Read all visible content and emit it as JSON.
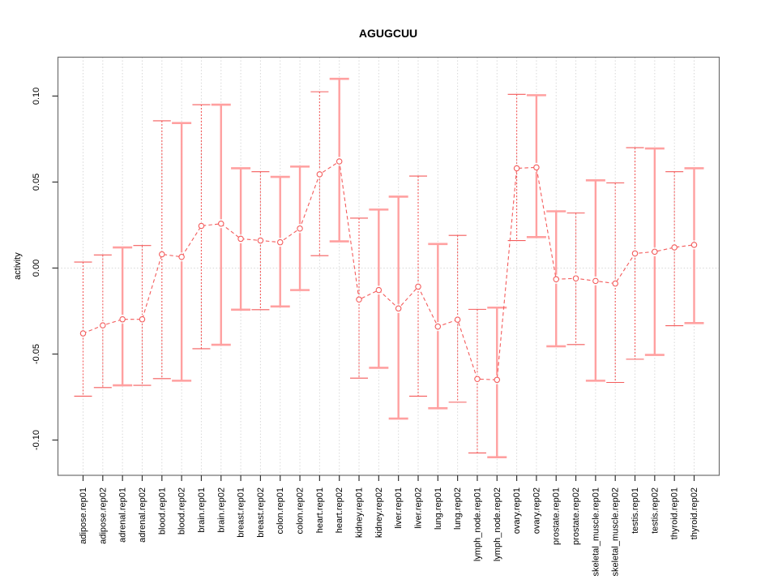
{
  "chart_data": {
    "type": "line",
    "title": "AGUGCUU",
    "ylabel": "activity",
    "xlabel": "",
    "legend": "none",
    "grid": {
      "vertical_per_category": true,
      "horizontal_zero_line": true,
      "style": "dotted"
    },
    "marker": "open-circle",
    "categories": [
      "adipose.rep01",
      "adipose.rep02",
      "adrenal.rep01",
      "adrenal.rep02",
      "blood.rep01",
      "blood.rep02",
      "brain.rep01",
      "brain.rep02",
      "breast.rep01",
      "breast.rep02",
      "colon.rep01",
      "colon.rep02",
      "heart.rep01",
      "heart.rep02",
      "kidney.rep01",
      "kidney.rep02",
      "liver.rep01",
      "liver.rep02",
      "lung.rep01",
      "lung.rep02",
      "lymph_node.rep01",
      "lymph_node.rep02",
      "ovary.rep01",
      "ovary.rep02",
      "prostate.rep01",
      "prostate.rep02",
      "skeletal_muscle.rep01",
      "skeletal_muscle.rep02",
      "testis.rep01",
      "testis.rep02",
      "thyroid.rep01",
      "thyroid.rep02"
    ],
    "series": [
      {
        "name": "activity",
        "values": [
          -0.038,
          -0.0333,
          -0.0298,
          -0.0298,
          0.008,
          0.0065,
          0.0245,
          0.0258,
          0.017,
          0.016,
          0.015,
          0.023,
          0.0545,
          0.062,
          -0.0183,
          -0.0128,
          -0.0235,
          -0.0108,
          -0.034,
          -0.03,
          -0.0645,
          -0.065,
          0.058,
          0.0585,
          -0.0065,
          -0.006,
          -0.0075,
          -0.009,
          0.0085,
          0.0095,
          0.012,
          0.0135
        ],
        "ci_low": [
          -0.0745,
          -0.0695,
          -0.0682,
          -0.0682,
          -0.0643,
          -0.0655,
          -0.0469,
          -0.0446,
          -0.0242,
          -0.0242,
          -0.0223,
          -0.0128,
          0.0072,
          0.0155,
          -0.064,
          -0.058,
          -0.0875,
          -0.0745,
          -0.0815,
          -0.078,
          -0.1075,
          -0.11,
          0.016,
          0.018,
          -0.0455,
          -0.0445,
          -0.0655,
          -0.0665,
          -0.053,
          -0.0505,
          -0.0335,
          -0.032
        ],
        "ci_high": [
          0.0035,
          0.0076,
          0.012,
          0.0131,
          0.0856,
          0.0843,
          0.095,
          0.095,
          0.058,
          0.056,
          0.053,
          0.059,
          0.1025,
          0.11,
          0.029,
          0.034,
          0.0415,
          0.0535,
          0.014,
          0.019,
          -0.024,
          -0.023,
          0.101,
          0.1005,
          0.033,
          0.032,
          0.051,
          0.0495,
          0.07,
          0.0695,
          0.056,
          0.058
        ],
        "bar_styles": [
          "dashed",
          "dashed",
          "solid",
          "dashed",
          "dashed",
          "solid",
          "dashed",
          "solid",
          "solid",
          "dashed",
          "solid",
          "solid",
          "dashed",
          "solid",
          "dashed",
          "solid",
          "solid",
          "dashed",
          "solid",
          "dashed",
          "dashed",
          "solid",
          "dashed",
          "solid",
          "solid",
          "dashed",
          "solid",
          "dashed",
          "dashed",
          "solid",
          "dashed",
          "solid"
        ]
      }
    ],
    "yticks": [
      -0.1,
      -0.05,
      0.0,
      0.05,
      0.1
    ],
    "ytick_labels": [
      "-0.10",
      "-0.05",
      "0.00",
      "0.05",
      "0.10"
    ],
    "ylim": [
      -0.1205,
      0.1226
    ],
    "colors": {
      "point": "#f45c5c",
      "line": "#f45c5c",
      "errorbar_dashed": "#f45c5c",
      "errorbar_solid": "#ffa0a0",
      "grid": "#d7d7d7",
      "axis_frame": "#6e6e6e",
      "tick": "#333333",
      "text": "#000000"
    }
  }
}
